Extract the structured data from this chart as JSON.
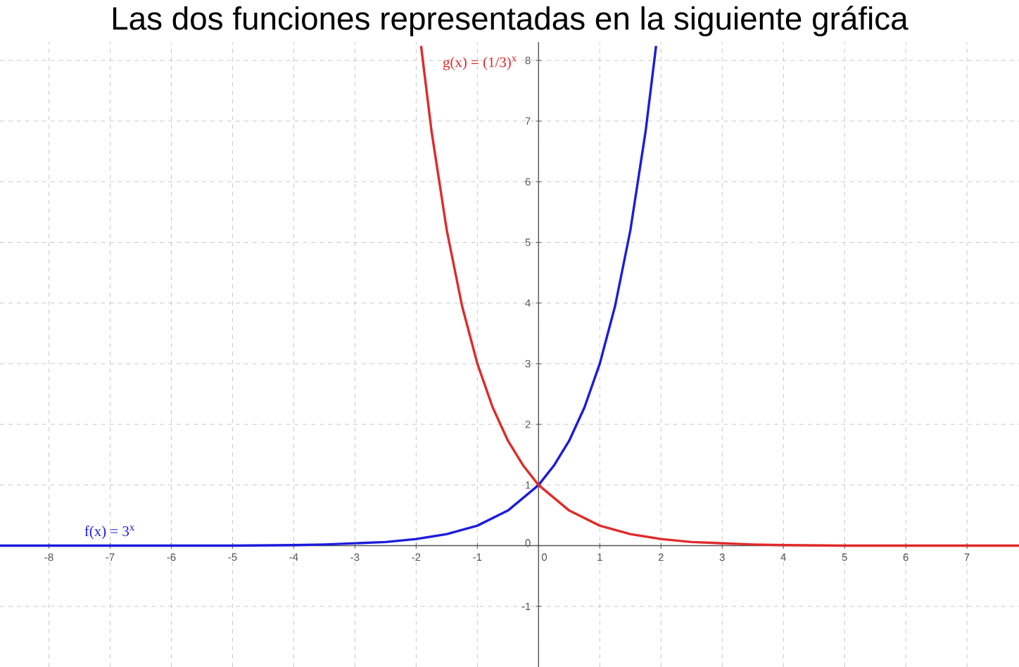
{
  "chart_data": {
    "type": "line",
    "title": "Las dos funciones representadas en la siguiente gráfica",
    "series": [
      {
        "name": "f(x) = 3$^{x}$",
        "color": "#1c1cdc",
        "x": [
          -8.8,
          -8,
          -7,
          -6,
          -5,
          -4,
          -3.5,
          -3,
          -2.5,
          -2,
          -1.5,
          -1,
          -0.5,
          0,
          0.25,
          0.5,
          0.75,
          1,
          1.25,
          1.5,
          1.75,
          1.92
        ],
        "values": [
          0,
          0,
          0,
          0,
          0,
          0.01,
          0.02,
          0.04,
          0.06,
          0.11,
          0.19,
          0.33,
          0.58,
          1,
          1.32,
          1.73,
          2.28,
          3,
          3.95,
          5.2,
          6.84,
          8.24
        ]
      },
      {
        "name": "g(x) = (1/3)$^{x}$",
        "color": "#e02a2a",
        "x": [
          -1.92,
          -1.75,
          -1.5,
          -1.25,
          -1,
          -0.75,
          -0.5,
          -0.25,
          0,
          0.5,
          1,
          1.5,
          2,
          2.5,
          3,
          3.5,
          4,
          5,
          6,
          7,
          7.85
        ],
        "values": [
          8.24,
          6.84,
          5.2,
          3.95,
          3,
          2.28,
          1.73,
          1.32,
          1,
          0.58,
          0.33,
          0.19,
          0.11,
          0.06,
          0.04,
          0.02,
          0.01,
          0,
          0,
          0,
          0
        ]
      }
    ],
    "xlim": [
      -8.8,
      7.85
    ],
    "ylim": [
      -2,
      8.3
    ],
    "xticks": [
      -8,
      -7,
      -6,
      -5,
      -4,
      -3,
      -2,
      -1,
      0,
      1,
      2,
      3,
      4,
      5,
      6,
      7
    ],
    "yticks": [
      -1,
      0,
      1,
      2,
      3,
      4,
      5,
      6,
      7,
      8
    ],
    "grid": true
  }
}
